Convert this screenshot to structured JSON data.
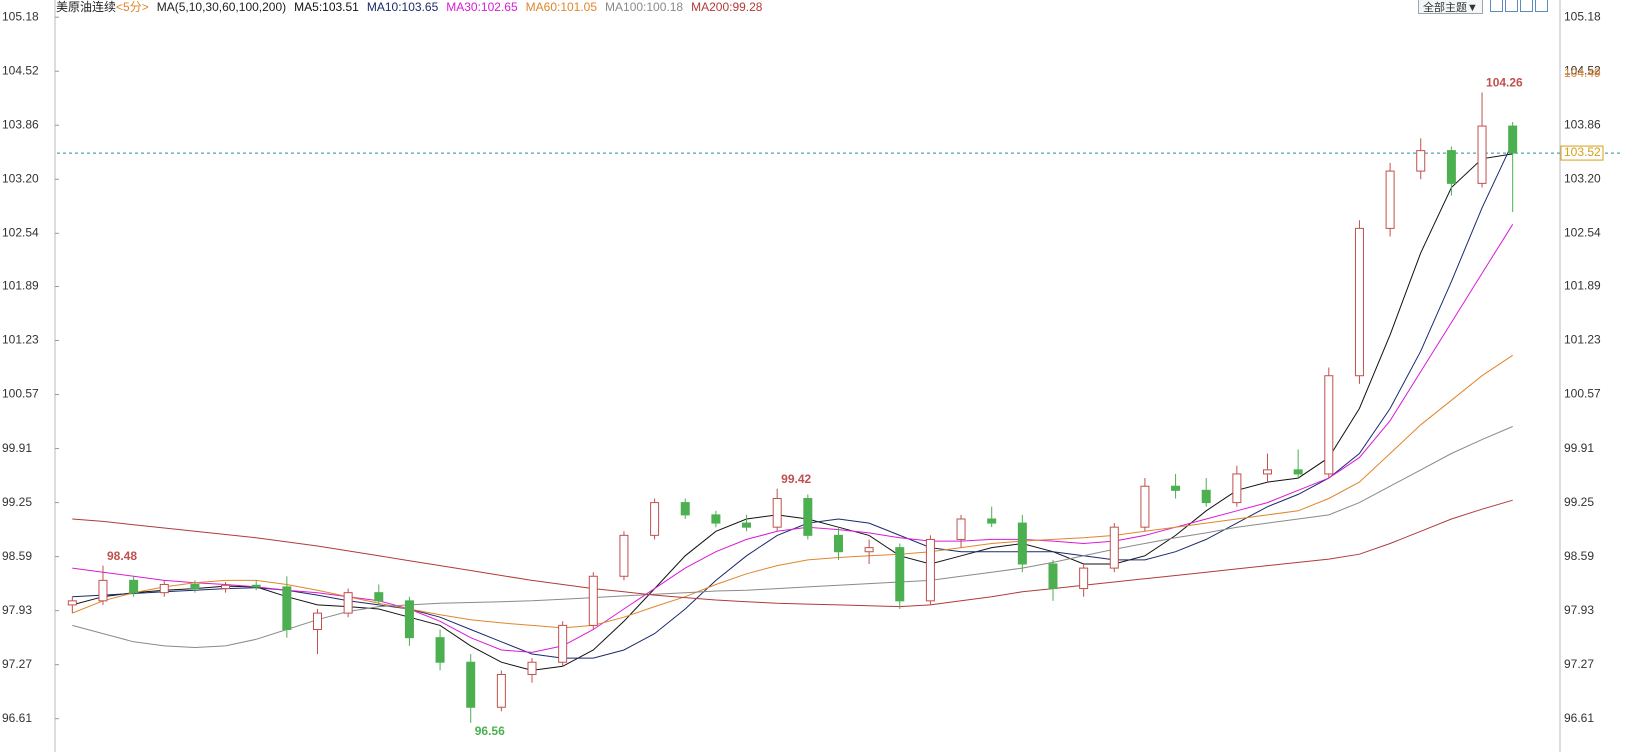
{
  "chart_data": {
    "type": "candlestick",
    "header": {
      "symbol": "美原油连续",
      "period": "<5分>",
      "ma_set": "MA(5,10,30,60,100,200)"
    },
    "theme_button": "全部主题▼",
    "up_color": "#c0504d",
    "down_color": "#4caf50",
    "ylim": [
      96.24,
      105.39
    ],
    "yticks": [
      105.18,
      104.52,
      103.86,
      {
        "value": 103.2,
        "label": "103.20"
      },
      102.54,
      101.89,
      101.23,
      100.57,
      99.91,
      99.25,
      98.59,
      97.93,
      97.27,
      96.61
    ],
    "open": [
      98.0,
      98.05,
      98.3,
      98.15,
      98.25,
      98.2,
      98.24,
      98.22,
      97.7,
      97.9,
      98.15,
      98.05,
      97.6,
      97.3,
      96.75,
      97.15,
      97.3,
      97.75,
      98.35,
      98.85,
      99.25,
      99.1,
      99.0,
      98.95,
      99.3,
      98.85,
      98.65,
      98.7,
      98.05,
      98.8,
      99.05,
      99.0,
      98.5,
      98.2,
      98.45,
      98.95,
      99.45,
      99.4,
      99.25,
      99.6,
      99.65,
      99.6,
      100.8,
      102.6,
      103.3,
      103.55,
      103.15,
      103.85
    ],
    "high": [
      98.1,
      98.48,
      98.35,
      98.3,
      98.3,
      98.28,
      98.3,
      98.35,
      97.95,
      98.2,
      98.25,
      98.1,
      97.7,
      97.4,
      97.2,
      97.35,
      97.8,
      98.4,
      98.9,
      99.3,
      99.3,
      99.15,
      99.1,
      99.42,
      99.35,
      98.95,
      98.8,
      98.75,
      98.85,
      99.1,
      99.2,
      99.1,
      98.55,
      98.5,
      99.0,
      99.55,
      99.6,
      99.55,
      99.7,
      99.85,
      99.9,
      100.9,
      102.7,
      103.4,
      103.7,
      103.6,
      104.26,
      103.9
    ],
    "low": [
      97.9,
      98.0,
      98.1,
      98.1,
      98.15,
      98.15,
      98.18,
      97.6,
      97.4,
      97.85,
      98.0,
      97.5,
      97.2,
      96.56,
      96.7,
      97.05,
      97.25,
      97.7,
      98.3,
      98.8,
      99.05,
      98.95,
      98.9,
      98.9,
      98.8,
      98.55,
      98.5,
      97.95,
      98.0,
      98.7,
      98.95,
      98.4,
      98.05,
      98.1,
      98.4,
      98.9,
      99.3,
      99.2,
      99.2,
      99.5,
      99.55,
      99.55,
      100.7,
      102.5,
      103.2,
      103.0,
      103.1,
      102.8
    ],
    "close": [
      98.05,
      98.3,
      98.15,
      98.25,
      98.2,
      98.24,
      98.22,
      97.7,
      97.9,
      98.15,
      98.05,
      97.6,
      97.3,
      96.75,
      97.15,
      97.3,
      97.75,
      98.35,
      98.85,
      99.25,
      99.1,
      99.0,
      98.95,
      99.3,
      98.85,
      98.65,
      98.7,
      98.05,
      98.8,
      99.05,
      99.0,
      98.5,
      98.2,
      98.45,
      98.95,
      99.45,
      99.4,
      99.25,
      99.6,
      99.65,
      99.6,
      100.8,
      102.6,
      103.3,
      103.55,
      103.15,
      103.85,
      103.52
    ],
    "series": [
      {
        "name": "MA5:103.51",
        "color": "#111111",
        "values": [
          98.0,
          98.1,
          98.15,
          98.18,
          98.2,
          98.23,
          98.22,
          98.1,
          98.0,
          97.98,
          97.95,
          97.85,
          97.75,
          97.5,
          97.3,
          97.2,
          97.25,
          97.45,
          97.8,
          98.2,
          98.6,
          98.9,
          99.05,
          99.1,
          99.05,
          98.95,
          98.85,
          98.6,
          98.5,
          98.6,
          98.7,
          98.75,
          98.65,
          98.5,
          98.5,
          98.6,
          98.85,
          99.15,
          99.4,
          99.5,
          99.55,
          99.8,
          100.4,
          101.3,
          102.3,
          103.1,
          103.45,
          103.51
        ]
      },
      {
        "name": "MA10:103.65",
        "color": "#1a2a6c",
        "values": [
          98.1,
          98.12,
          98.14,
          98.16,
          98.18,
          98.2,
          98.21,
          98.18,
          98.12,
          98.05,
          98.0,
          97.95,
          97.85,
          97.7,
          97.55,
          97.4,
          97.35,
          97.35,
          97.45,
          97.65,
          97.95,
          98.3,
          98.6,
          98.85,
          99.0,
          99.05,
          99.0,
          98.85,
          98.7,
          98.65,
          98.65,
          98.65,
          98.65,
          98.6,
          98.55,
          98.55,
          98.65,
          98.8,
          99.0,
          99.2,
          99.35,
          99.55,
          99.85,
          100.4,
          101.1,
          101.95,
          102.85,
          103.65
        ]
      },
      {
        "name": "MA30:102.65",
        "color": "#d81bd8",
        "values": [
          98.45,
          98.4,
          98.35,
          98.3,
          98.27,
          98.25,
          98.22,
          98.18,
          98.15,
          98.1,
          98.05,
          97.95,
          97.8,
          97.6,
          97.45,
          97.42,
          97.5,
          97.7,
          97.95,
          98.2,
          98.45,
          98.65,
          98.8,
          98.9,
          98.95,
          98.92,
          98.88,
          98.82,
          98.78,
          98.78,
          98.8,
          98.8,
          98.78,
          98.75,
          98.78,
          98.85,
          98.95,
          99.05,
          99.15,
          99.25,
          99.4,
          99.55,
          99.8,
          100.25,
          100.85,
          101.45,
          102.05,
          102.65
        ]
      },
      {
        "name": "MA60:101.05",
        "color": "#e0862a",
        "values": [
          97.9,
          98.05,
          98.15,
          98.22,
          98.27,
          98.3,
          98.3,
          98.25,
          98.18,
          98.1,
          98.02,
          97.95,
          97.88,
          97.82,
          97.78,
          97.75,
          97.72,
          97.75,
          97.85,
          97.98,
          98.1,
          98.25,
          98.38,
          98.48,
          98.55,
          98.58,
          98.6,
          98.62,
          98.65,
          98.7,
          98.75,
          98.78,
          98.8,
          98.82,
          98.85,
          98.9,
          98.95,
          99.0,
          99.05,
          99.1,
          99.15,
          99.3,
          99.5,
          99.85,
          100.2,
          100.5,
          100.8,
          101.05
        ]
      },
      {
        "name": "MA100:100.18",
        "color": "#8a8a8a",
        "values": [
          97.75,
          97.65,
          97.55,
          97.5,
          97.48,
          97.5,
          97.58,
          97.7,
          97.82,
          97.92,
          97.98,
          98.0,
          98.02,
          98.03,
          98.04,
          98.05,
          98.07,
          98.09,
          98.11,
          98.13,
          98.15,
          98.17,
          98.18,
          98.2,
          98.22,
          98.24,
          98.26,
          98.28,
          98.3,
          98.35,
          98.4,
          98.45,
          98.52,
          98.6,
          98.68,
          98.75,
          98.82,
          98.88,
          98.95,
          99.0,
          99.05,
          99.1,
          99.25,
          99.45,
          99.65,
          99.85,
          100.02,
          100.18
        ]
      },
      {
        "name": "MA200:99.28",
        "color": "#b23a3a",
        "values": [
          99.05,
          99.02,
          98.98,
          98.94,
          98.9,
          98.86,
          98.82,
          98.77,
          98.72,
          98.66,
          98.6,
          98.54,
          98.48,
          98.42,
          98.36,
          98.3,
          98.25,
          98.2,
          98.16,
          98.12,
          98.09,
          98.06,
          98.04,
          98.02,
          98.01,
          98.0,
          97.99,
          97.98,
          98.0,
          98.05,
          98.1,
          98.16,
          98.2,
          98.24,
          98.28,
          98.32,
          98.36,
          98.4,
          98.44,
          98.48,
          98.52,
          98.56,
          98.62,
          98.75,
          98.9,
          99.05,
          99.17,
          99.28
        ]
      }
    ],
    "high_marks": [
      98.48,
      99.42,
      104.26
    ],
    "low_marks": [
      96.56
    ],
    "tag": {
      "value": 104.49,
      "color": "#e0862a"
    },
    "last_price": {
      "value": 103.52,
      "color": "#d4a017"
    }
  }
}
